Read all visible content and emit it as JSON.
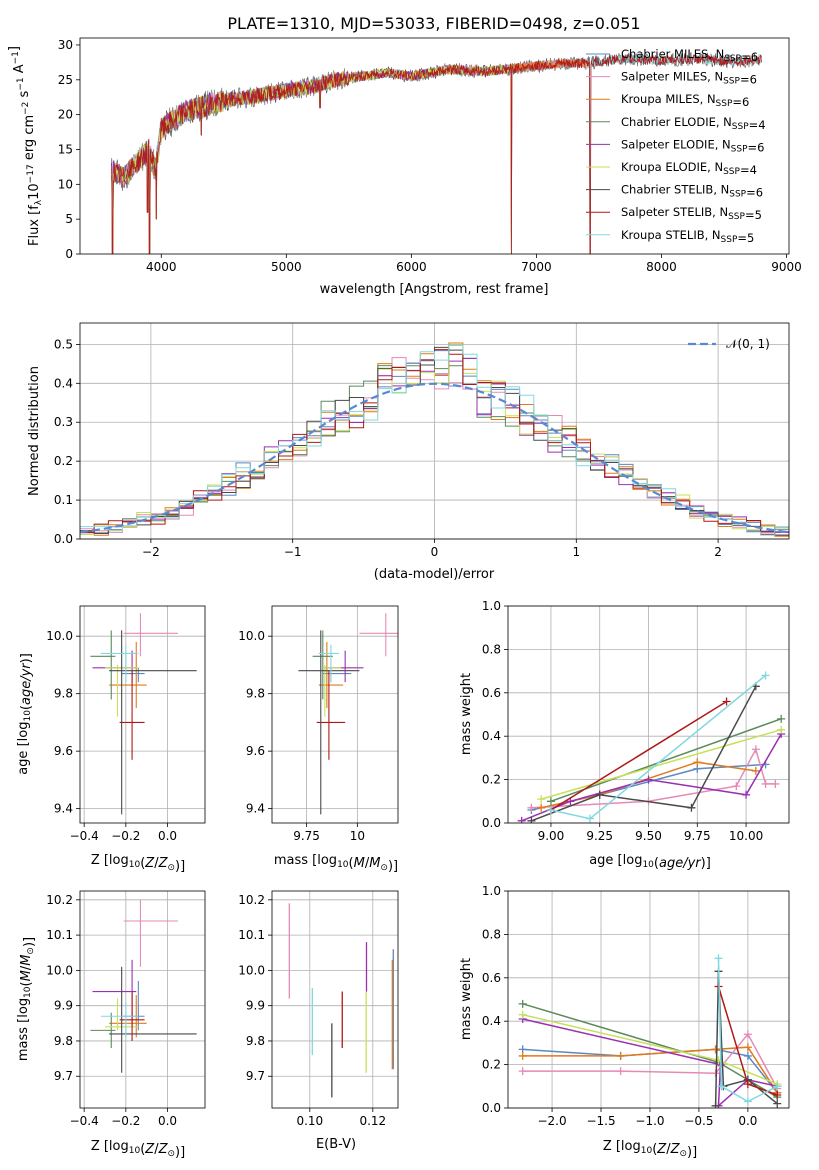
{
  "figure_title": "PLATE=1310, MJD=53033, FIBERID=0498, z=0.051",
  "colors": {
    "chabrier_miles": "#5b88c4",
    "salpeter_miles": "#e58ab6",
    "kroupa_miles": "#e07a1a",
    "chabrier_elodie": "#5a8a5a",
    "salpeter_elodie": "#9a30b0",
    "kroupa_elodie": "#c6e05a",
    "chabrier_stelib": "#4a4a4a",
    "salpeter_stelib": "#b01818",
    "kroupa_stelib": "#80d8e0",
    "normal": "#5b88d4",
    "grid": "#b0b0b0"
  },
  "chart_data": [
    {
      "id": "spectrum",
      "type": "line",
      "xlabel": "wavelength [Angstrom, rest frame]",
      "ylabel": "Flux [f",
      "xlim": [
        3350,
        9020
      ],
      "ylim": [
        0,
        31
      ],
      "xticks": [
        4000,
        5000,
        6000,
        7000,
        8000,
        9000
      ],
      "yticks": [
        0,
        5,
        10,
        15,
        20,
        25,
        30
      ],
      "grid": false,
      "legend_position": "upper-right",
      "continuum": [
        [
          3600,
          12
        ],
        [
          3700,
          11
        ],
        [
          3800,
          13
        ],
        [
          3900,
          15
        ],
        [
          3950,
          12
        ],
        [
          4000,
          18
        ],
        [
          4200,
          20.5
        ],
        [
          4500,
          22
        ],
        [
          4800,
          22.8
        ],
        [
          5000,
          23.5
        ],
        [
          5200,
          24
        ],
        [
          5400,
          25
        ],
        [
          5800,
          26
        ],
        [
          6000,
          25.5
        ],
        [
          6300,
          26.5
        ],
        [
          6600,
          26.2
        ],
        [
          7000,
          27
        ],
        [
          7200,
          27.3
        ],
        [
          7400,
          27.4
        ],
        [
          7700,
          28
        ],
        [
          8000,
          27.8
        ],
        [
          8300,
          28
        ],
        [
          8600,
          27.6
        ],
        [
          8800,
          28
        ]
      ],
      "drops": [
        [
          3610,
          0
        ],
        [
          3890,
          6
        ],
        [
          3905,
          0
        ],
        [
          3960,
          5
        ],
        [
          4320,
          17
        ],
        [
          5270,
          21
        ],
        [
          6800,
          0
        ],
        [
          7430,
          0
        ]
      ],
      "series": [
        {
          "label": "Chabrier MILES, N",
          "n": 6,
          "xmax": 7400
        },
        {
          "label": "Salpeter MILES, N",
          "n": 6,
          "xmax": 7400
        },
        {
          "label": "Kroupa MILES, N",
          "n": 6,
          "xmax": 7400
        },
        {
          "label": "Chabrier ELODIE, N",
          "n": 4,
          "xmax": 6800
        },
        {
          "label": "Salpeter ELODIE, N",
          "n": 6,
          "xmax": 6800
        },
        {
          "label": "Kroupa ELODIE, N",
          "n": 4,
          "xmax": 6800
        },
        {
          "label": "Chabrier STELIB, N",
          "n": 6,
          "xmax": 8800
        },
        {
          "label": "Salpeter STELIB, N",
          "n": 5,
          "xmax": 8800
        },
        {
          "label": "Kroupa STELIB, N",
          "n": 5,
          "xmax": 8800
        }
      ]
    },
    {
      "id": "residuals",
      "type": "area",
      "xlabel": "(data-model)/error",
      "ylabel": "Normed distribution",
      "xlim": [
        -2.5,
        2.5
      ],
      "ylim": [
        0,
        0.555
      ],
      "xticks": [
        -2,
        -1,
        0,
        1,
        2
      ],
      "xtick_labels": [
        "−2",
        "−1",
        "0",
        "1",
        "2"
      ],
      "yticks": [
        0,
        0.1,
        0.2,
        0.3,
        0.4,
        0.5
      ],
      "grid": true,
      "legend_label": "𝒩(0, 1)",
      "legend_position": "upper-right",
      "bin_width": 0.1
    },
    {
      "id": "age_z",
      "type": "scatter",
      "xlabel": "Z [log",
      "ylabel": "age  [log",
      "xlim": [
        -0.42,
        0.18
      ],
      "ylim": [
        9.35,
        10.105
      ],
      "xticks": [
        -0.4,
        -0.2,
        0.0
      ],
      "xtick_labels": [
        "−0.4",
        "−0.2",
        "0.0"
      ],
      "yticks": [
        9.4,
        9.6,
        9.8,
        10.0
      ],
      "grid": true,
      "points": [
        {
          "x": -0.14,
          "xerr": [
            0.08,
            0.03
          ],
          "y": 9.87,
          "yerr": [
            0.03,
            0.02
          ],
          "series": 0
        },
        {
          "x": -0.13,
          "xerr": [
            0.08,
            0.18
          ],
          "y": 10.01,
          "yerr": [
            0.08,
            0.07
          ],
          "series": 1
        },
        {
          "x": -0.15,
          "xerr": [
            0.13,
            0.05
          ],
          "y": 9.83,
          "yerr": [
            0.08,
            0.15
          ],
          "series": 2
        },
        {
          "x": -0.27,
          "xerr": [
            0.1,
            0.02
          ],
          "y": 9.93,
          "yerr": [
            0.15,
            0.09
          ],
          "series": 3
        },
        {
          "x": -0.17,
          "xerr": [
            0.19,
            0.02
          ],
          "y": 9.89,
          "yerr": [
            0.05,
            0.06
          ],
          "series": 4
        },
        {
          "x": -0.24,
          "xerr": [
            0.06,
            0.1
          ],
          "y": 9.89,
          "yerr": [
            0.17,
            0.01
          ],
          "series": 5
        },
        {
          "x": -0.22,
          "xerr": [
            0.06,
            0.36
          ],
          "y": 9.88,
          "yerr": [
            0.5,
            0.14
          ],
          "series": 6
        },
        {
          "x": -0.17,
          "xerr": [
            0.06,
            0.06
          ],
          "y": 9.7,
          "yerr": [
            0.13,
            0.18
          ],
          "series": 7
        },
        {
          "x": -0.2,
          "xerr": [
            0.12,
            0.06
          ],
          "y": 9.94,
          "yerr": [
            0.1,
            0.03
          ],
          "series": 8
        }
      ]
    },
    {
      "id": "age_mass",
      "type": "scatter",
      "xlabel": "mass [log",
      "ylabel": "",
      "xlim": [
        9.58,
        10.2
      ],
      "ylim": [
        9.35,
        10.105
      ],
      "xticks": [
        9.75,
        10.0
      ],
      "yticks": [
        9.4,
        9.6,
        9.8,
        10.0
      ],
      "grid": true,
      "points": [
        {
          "x": 9.87,
          "xerr": [
            0.04,
            0.1
          ],
          "y": 9.87,
          "yerr": [
            0.03,
            0.02
          ],
          "series": 0
        },
        {
          "x": 10.14,
          "xerr": [
            0.13,
            0.06
          ],
          "y": 10.01,
          "yerr": [
            0.08,
            0.07
          ],
          "series": 1
        },
        {
          "x": 9.85,
          "xerr": [
            0.04,
            0.08
          ],
          "y": 9.83,
          "yerr": [
            0.08,
            0.15
          ],
          "series": 2
        },
        {
          "x": 9.83,
          "xerr": [
            0.05,
            0.05
          ],
          "y": 9.93,
          "yerr": [
            0.15,
            0.09
          ],
          "series": 3
        },
        {
          "x": 9.94,
          "xerr": [
            0.1,
            0.09
          ],
          "y": 9.89,
          "yerr": [
            0.05,
            0.06
          ],
          "series": 4
        },
        {
          "x": 9.84,
          "xerr": [
            0.01,
            0.08
          ],
          "y": 9.89,
          "yerr": [
            0.17,
            0.01
          ],
          "series": 5
        },
        {
          "x": 9.82,
          "xerr": [
            0.11,
            0.19
          ],
          "y": 9.88,
          "yerr": [
            0.5,
            0.14
          ],
          "series": 6
        },
        {
          "x": 9.86,
          "xerr": [
            0.06,
            0.08
          ],
          "y": 9.7,
          "yerr": [
            0.13,
            0.18
          ],
          "series": 7
        },
        {
          "x": 9.87,
          "xerr": [
            0.06,
            0.04
          ],
          "y": 9.94,
          "yerr": [
            0.1,
            0.03
          ],
          "series": 8
        }
      ]
    },
    {
      "id": "weight_age",
      "type": "line",
      "xlabel": "age  [log",
      "ylabel": "mass weight",
      "xlim": [
        8.78,
        10.22
      ],
      "ylim": [
        0,
        1.0
      ],
      "xticks": [
        9.0,
        9.25,
        9.5,
        9.75,
        10.0
      ],
      "xtick_labels": [
        "9.00",
        "9.25",
        "9.50",
        "9.75",
        "10.00"
      ],
      "yticks": [
        0,
        0.2,
        0.4,
        0.6,
        0.8,
        1.0
      ],
      "grid": true,
      "series": [
        {
          "x": [
            8.9,
            9.25,
            9.75,
            10.1
          ],
          "y": [
            0.06,
            0.13,
            0.25,
            0.27
          ]
        },
        {
          "x": [
            8.9,
            9.5,
            9.95,
            10.05,
            10.1,
            10.15
          ],
          "y": [
            0.07,
            0.1,
            0.17,
            0.34,
            0.18,
            0.18
          ]
        },
        {
          "x": [
            8.95,
            9.25,
            9.75,
            10.05
          ],
          "y": [
            0.07,
            0.13,
            0.28,
            0.24
          ]
        },
        {
          "x": [
            9.0,
            10.18
          ],
          "y": [
            0.1,
            0.48
          ]
        },
        {
          "x": [
            8.85,
            9.1,
            9.5,
            10.0,
            10.18
          ],
          "y": [
            0.01,
            0.1,
            0.2,
            0.13,
            0.41
          ]
        },
        {
          "x": [
            8.95,
            10.18
          ],
          "y": [
            0.11,
            0.43
          ]
        },
        {
          "x": [
            8.9,
            9.25,
            9.72,
            10.05
          ],
          "y": [
            0.01,
            0.13,
            0.07,
            0.63
          ]
        },
        {
          "x": [
            9.0,
            9.9
          ],
          "y": [
            0.06,
            0.56
          ]
        },
        {
          "x": [
            9.0,
            9.2,
            10.1
          ],
          "y": [
            0.06,
            0.02,
            0.68
          ]
        }
      ]
    },
    {
      "id": "mass_z",
      "type": "scatter",
      "xlabel": "Z [log",
      "ylabel": "mass [log",
      "xlim": [
        -0.42,
        0.18
      ],
      "ylim": [
        9.61,
        10.225
      ],
      "xticks": [
        -0.4,
        -0.2,
        0.0
      ],
      "xtick_labels": [
        "−0.4",
        "−0.2",
        "0.0"
      ],
      "yticks": [
        9.7,
        9.8,
        9.9,
        10.0,
        10.1,
        10.2
      ],
      "grid": true,
      "points": [
        {
          "x": -0.14,
          "xerr": [
            0.08,
            0.03
          ],
          "y": 9.87,
          "yerr": [
            0.04,
            0.1
          ],
          "series": 0
        },
        {
          "x": -0.13,
          "xerr": [
            0.08,
            0.18
          ],
          "y": 10.14,
          "yerr": [
            0.13,
            0.06
          ],
          "series": 1
        },
        {
          "x": -0.15,
          "xerr": [
            0.13,
            0.05
          ],
          "y": 9.85,
          "yerr": [
            0.04,
            0.08
          ],
          "series": 2
        },
        {
          "x": -0.27,
          "xerr": [
            0.1,
            0.02
          ],
          "y": 9.83,
          "yerr": [
            0.05,
            0.05
          ],
          "series": 3
        },
        {
          "x": -0.17,
          "xerr": [
            0.19,
            0.02
          ],
          "y": 9.94,
          "yerr": [
            0.1,
            0.09
          ],
          "series": 4
        },
        {
          "x": -0.24,
          "xerr": [
            0.06,
            0.1
          ],
          "y": 9.84,
          "yerr": [
            0.01,
            0.08
          ],
          "series": 5
        },
        {
          "x": -0.22,
          "xerr": [
            0.06,
            0.36
          ],
          "y": 9.82,
          "yerr": [
            0.11,
            0.19
          ],
          "series": 6
        },
        {
          "x": -0.17,
          "xerr": [
            0.06,
            0.06
          ],
          "y": 9.86,
          "yerr": [
            0.06,
            0.08
          ],
          "series": 7
        },
        {
          "x": -0.2,
          "xerr": [
            0.12,
            0.06
          ],
          "y": 9.87,
          "yerr": [
            0.06,
            0.04
          ],
          "series": 8
        }
      ]
    },
    {
      "id": "mass_ebv",
      "type": "scatter",
      "xlabel": "E(B-V)",
      "ylabel": "",
      "xlim": [
        0.088,
        0.128
      ],
      "ylim": [
        9.61,
        10.225
      ],
      "xticks": [
        0.1,
        0.12
      ],
      "xtick_labels": [
        "0.10",
        "0.12"
      ],
      "yticks": [
        9.7,
        9.8,
        9.9,
        10.0,
        10.1,
        10.2
      ],
      "grid": true,
      "bars": [
        {
          "x": 0.1265,
          "y0": 9.72,
          "y1": 10.06,
          "series": 0
        },
        {
          "x": 0.0935,
          "y0": 9.92,
          "y1": 10.19,
          "series": 1
        },
        {
          "x": 0.1262,
          "y0": 9.72,
          "y1": 10.03,
          "series": 2
        },
        {
          "x": 0.1008,
          "y0": 9.76,
          "y1": 9.95,
          "series": 8
        },
        {
          "x": 0.107,
          "y0": 9.64,
          "y1": 9.85,
          "series": 6
        },
        {
          "x": 0.1103,
          "y0": 9.78,
          "y1": 9.94,
          "series": 7
        },
        {
          "x": 0.1179,
          "y0": 9.71,
          "y1": 9.94,
          "series": 5
        },
        {
          "x": 0.118,
          "y0": 9.94,
          "y1": 10.08,
          "series": 4
        }
      ]
    },
    {
      "id": "weight_z",
      "type": "line",
      "xlabel": "Z [log",
      "ylabel": "mass weight",
      "xlim": [
        -2.45,
        0.42
      ],
      "ylim": [
        0,
        1.0
      ],
      "xticks": [
        -2.0,
        -1.5,
        -1.0,
        -0.5,
        0.0
      ],
      "xtick_labels": [
        "−2.0",
        "−1.5",
        "−1.0",
        "−0.5",
        "0.0"
      ],
      "yticks": [
        0,
        0.2,
        0.4,
        0.6,
        0.8,
        1.0
      ],
      "grid": true,
      "series": [
        {
          "x": [
            -2.3,
            -1.3,
            -0.33,
            0.0,
            0.3
          ],
          "y": [
            0.27,
            0.24,
            0.27,
            0.24,
            0.07
          ]
        },
        {
          "x": [
            -2.3,
            -1.3,
            -0.33,
            0.0,
            0.3
          ],
          "y": [
            0.17,
            0.17,
            0.16,
            0.34,
            0.09
          ]
        },
        {
          "x": [
            -2.3,
            -1.3,
            -0.33,
            0.0,
            0.3
          ],
          "y": [
            0.24,
            0.24,
            0.27,
            0.28,
            0.07
          ]
        },
        {
          "x": [
            -2.3,
            -0.3,
            0.3
          ],
          "y": [
            0.48,
            0.21,
            0.05
          ]
        },
        {
          "x": [
            -2.3,
            -0.28,
            -0.3,
            0.0,
            0.3
          ],
          "y": [
            0.41,
            0.2,
            0.01,
            0.13,
            0.1
          ]
        },
        {
          "x": [
            -2.3,
            -0.3,
            0.3
          ],
          "y": [
            0.43,
            0.22,
            0.11
          ]
        },
        {
          "x": [
            -0.33,
            -0.3,
            -0.25,
            0.0,
            0.3
          ],
          "y": [
            0.01,
            0.63,
            0.1,
            0.13,
            0.02
          ]
        },
        {
          "x": [
            -0.3,
            0.0,
            0.3
          ],
          "y": [
            0.56,
            0.11,
            0.06
          ]
        },
        {
          "x": [
            -0.3,
            -0.27,
            0.0,
            0.3
          ],
          "y": [
            0.69,
            0.1,
            0.03,
            0.1
          ]
        }
      ]
    }
  ]
}
